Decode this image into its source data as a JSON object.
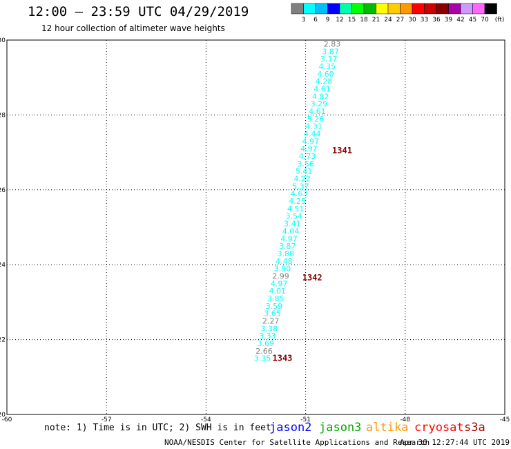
{
  "header": {
    "title": "12:00 – 23:59 UTC 04/29/2019",
    "subtitle": "12 hour collection of altimeter wave heights"
  },
  "legend": {
    "colors": [
      "#808080",
      "#00ffff",
      "#00bfff",
      "#0000ff",
      "#00ffaa",
      "#00ff00",
      "#00bb00",
      "#ffff00",
      "#ffcc00",
      "#ff9900",
      "#ff0000",
      "#cc0000",
      "#880000",
      "#aa00aa",
      "#cc99ff",
      "#ff66ff",
      "#000000"
    ],
    "labels": [
      "3",
      "6",
      "9",
      "12",
      "15",
      "18",
      "21",
      "24",
      "27",
      "30",
      "33",
      "36",
      "39",
      "42",
      "45",
      "70"
    ],
    "unit": "(ft)"
  },
  "chart_data": {
    "type": "scatter",
    "xlim": [
      -60,
      -45
    ],
    "ylim": [
      20,
      30
    ],
    "x_ticks": [
      -60,
      -57,
      -54,
      -51,
      -48,
      -45
    ],
    "x_tick_labels": [
      "-60",
      "-57",
      "-54",
      "-51",
      "-48",
      "-45"
    ],
    "y_ticks": [
      20,
      22,
      24,
      26,
      28,
      30
    ],
    "y_tick_labels": [
      "20",
      "22",
      "24",
      "26",
      "28",
      "30"
    ],
    "grid": true,
    "series": [
      {
        "values": [
          {
            "x": -50.2,
            "y": 29.9,
            "label": "2.83",
            "color": "#808080"
          },
          {
            "x": -50.25,
            "y": 29.7,
            "label": "3.87",
            "color": "#00ffff"
          },
          {
            "x": -50.3,
            "y": 29.5,
            "label": "3.17",
            "color": "#00ffff"
          },
          {
            "x": -50.35,
            "y": 29.3,
            "label": "4.35",
            "color": "#00ffff"
          },
          {
            "x": -50.4,
            "y": 29.1,
            "label": "4.60",
            "color": "#00ffff"
          },
          {
            "x": -50.45,
            "y": 28.9,
            "label": "4.28",
            "color": "#00ffff"
          },
          {
            "x": -50.5,
            "y": 28.7,
            "label": "4.61",
            "color": "#00ffff"
          },
          {
            "x": -50.55,
            "y": 28.5,
            "label": "4.82",
            "color": "#00ffff"
          },
          {
            "x": -50.6,
            "y": 28.3,
            "label": "3.29",
            "color": "#00ffff"
          },
          {
            "x": -50.65,
            "y": 28.1,
            "label": "4.61",
            "color": "#00ffff"
          },
          {
            "x": -50.7,
            "y": 27.9,
            "label": "5.26",
            "color": "#00ffff"
          },
          {
            "x": -50.75,
            "y": 27.7,
            "label": "4.31",
            "color": "#00ffff"
          },
          {
            "x": -50.8,
            "y": 27.5,
            "label": "4.44",
            "color": "#00ffff"
          },
          {
            "x": -50.85,
            "y": 27.3,
            "label": "4.97",
            "color": "#00ffff"
          },
          {
            "x": -50.9,
            "y": 27.1,
            "label": "4.97",
            "color": "#00ffff"
          },
          {
            "x": -50.95,
            "y": 26.9,
            "label": "4.73",
            "color": "#00ffff"
          },
          {
            "x": -51.0,
            "y": 26.7,
            "label": "3.56",
            "color": "#00ffff"
          },
          {
            "x": -51.05,
            "y": 26.5,
            "label": "5.41",
            "color": "#00ffff"
          },
          {
            "x": -51.1,
            "y": 26.3,
            "label": "4.22",
            "color": "#00ffff"
          },
          {
            "x": -51.15,
            "y": 26.1,
            "label": "5.37",
            "color": "#00ffff"
          },
          {
            "x": -51.2,
            "y": 25.9,
            "label": "4.63",
            "color": "#00ffff"
          },
          {
            "x": -51.25,
            "y": 25.7,
            "label": "4.25",
            "color": "#00ffff"
          },
          {
            "x": -51.3,
            "y": 25.5,
            "label": "4.51",
            "color": "#00ffff"
          },
          {
            "x": -51.35,
            "y": 25.3,
            "label": "3.54",
            "color": "#00ffff"
          },
          {
            "x": -51.4,
            "y": 25.1,
            "label": "3.41",
            "color": "#00ffff"
          },
          {
            "x": -51.45,
            "y": 24.9,
            "label": "4.04",
            "color": "#00ffff"
          },
          {
            "x": -51.5,
            "y": 24.7,
            "label": "4.97",
            "color": "#00ffff"
          },
          {
            "x": -51.55,
            "y": 24.5,
            "label": "3.87",
            "color": "#00ffff"
          },
          {
            "x": -51.6,
            "y": 24.3,
            "label": "3.88",
            "color": "#00ffff"
          },
          {
            "x": -51.65,
            "y": 24.1,
            "label": "4.48",
            "color": "#00ffff"
          },
          {
            "x": -51.7,
            "y": 23.9,
            "label": "3.90",
            "color": "#00ffff"
          },
          {
            "x": -51.75,
            "y": 23.7,
            "label": "2.99",
            "color": "#808080"
          },
          {
            "x": -51.8,
            "y": 23.5,
            "label": "4.97",
            "color": "#00ffff"
          },
          {
            "x": -51.85,
            "y": 23.3,
            "label": "4.01",
            "color": "#00ffff"
          },
          {
            "x": -51.9,
            "y": 23.1,
            "label": "3.85",
            "color": "#00ffff"
          },
          {
            "x": -51.95,
            "y": 22.9,
            "label": "3.59",
            "color": "#00ffff"
          },
          {
            "x": -52.0,
            "y": 22.7,
            "label": "3.65",
            "color": "#00ffff"
          },
          {
            "x": -52.05,
            "y": 22.5,
            "label": "2.27",
            "color": "#808080"
          },
          {
            "x": -52.1,
            "y": 22.3,
            "label": "3.38",
            "color": "#00ffff"
          },
          {
            "x": -52.15,
            "y": 22.1,
            "label": "3.33",
            "color": "#00ffff"
          },
          {
            "x": -52.2,
            "y": 21.9,
            "label": "3.69",
            "color": "#00ffff"
          },
          {
            "x": -52.25,
            "y": 21.7,
            "label": "2.66",
            "color": "#808080"
          },
          {
            "x": -52.3,
            "y": 21.5,
            "label": "3.35",
            "color": "#00ffff"
          }
        ]
      }
    ],
    "annotations": [
      {
        "x": -49.9,
        "y": 27.05,
        "text": "1341",
        "color": "#880000"
      },
      {
        "x": -50.8,
        "y": 23.65,
        "text": "1342",
        "color": "#880000"
      },
      {
        "x": -51.7,
        "y": 21.5,
        "text": "1343",
        "color": "#880000"
      }
    ]
  },
  "footer": {
    "note": "note: 1) Time is in UTC; 2) SWH is in feet",
    "satellites": [
      {
        "name": "jason2",
        "color": "#0000ff"
      },
      {
        "name": "jason3",
        "color": "#00aa00"
      },
      {
        "name": "altika",
        "color": "#ff9900"
      },
      {
        "name": "cryosat",
        "color": "#ff0000"
      },
      {
        "name": "s3a",
        "color": "#aa0000"
      }
    ],
    "credit": "NOAA/NESDIS Center for Satellite Applications and Research",
    "date": "Apr 30 12:27:44 UTC 2019"
  }
}
